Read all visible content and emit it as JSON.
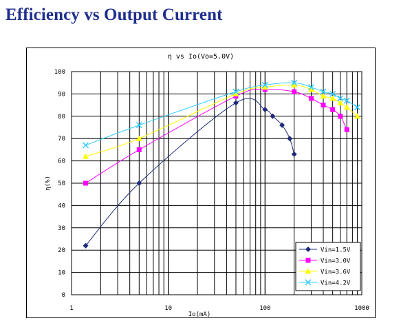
{
  "page": {
    "heading": "Efficiency vs Output Current"
  },
  "colors": {
    "heading": "#1f2f8f",
    "vin15": "#1f2a7a",
    "vin30": "#ff00ff",
    "vin36": "#ffff00",
    "vin42": "#33ccff"
  },
  "chart_data": {
    "type": "line",
    "title": "η vs Io(Vo=5.0V)",
    "xlabel": "Io(mA)",
    "ylabel": "η(%)",
    "x_scale": "log",
    "xlim": [
      1,
      1000
    ],
    "ylim": [
      0,
      100
    ],
    "x_ticks": [
      "1",
      "10",
      "100",
      "1000"
    ],
    "y_ticks": [
      "0",
      "10",
      "20",
      "30",
      "40",
      "50",
      "60",
      "70",
      "80",
      "90",
      "100"
    ],
    "grid": true,
    "legend_position": "bottom-right",
    "series": [
      {
        "name": "Vin=1.5V",
        "color": "#1f2a7a",
        "marker": "diamond",
        "points": [
          [
            1.4,
            22
          ],
          [
            5,
            50
          ],
          [
            50,
            86
          ],
          [
            100,
            83
          ],
          [
            120,
            80
          ],
          [
            150,
            76
          ],
          [
            180,
            70
          ],
          [
            200,
            63
          ]
        ]
      },
      {
        "name": "Vin=3.0V",
        "color": "#ff00ff",
        "marker": "square",
        "points": [
          [
            1.4,
            50
          ],
          [
            5,
            65
          ],
          [
            50,
            89
          ],
          [
            100,
            92
          ],
          [
            200,
            91
          ],
          [
            300,
            88
          ],
          [
            400,
            85
          ],
          [
            500,
            83
          ],
          [
            600,
            80
          ],
          [
            700,
            74
          ]
        ]
      },
      {
        "name": "Vin=3.6V",
        "color": "#ffff00",
        "marker": "triangle",
        "points": [
          [
            1.4,
            62
          ],
          [
            5,
            70
          ],
          [
            50,
            90
          ],
          [
            100,
            93
          ],
          [
            200,
            94
          ],
          [
            300,
            92
          ],
          [
            400,
            89
          ],
          [
            500,
            88
          ],
          [
            600,
            86
          ],
          [
            700,
            84
          ],
          [
            900,
            80
          ]
        ]
      },
      {
        "name": "Vin=4.2V",
        "color": "#33ccff",
        "marker": "x",
        "points": [
          [
            1.4,
            67
          ],
          [
            5,
            76
          ],
          [
            50,
            91
          ],
          [
            100,
            94
          ],
          [
            200,
            95
          ],
          [
            300,
            93
          ],
          [
            400,
            91
          ],
          [
            500,
            90
          ],
          [
            600,
            88
          ],
          [
            700,
            87
          ],
          [
            900,
            84
          ]
        ]
      }
    ]
  }
}
